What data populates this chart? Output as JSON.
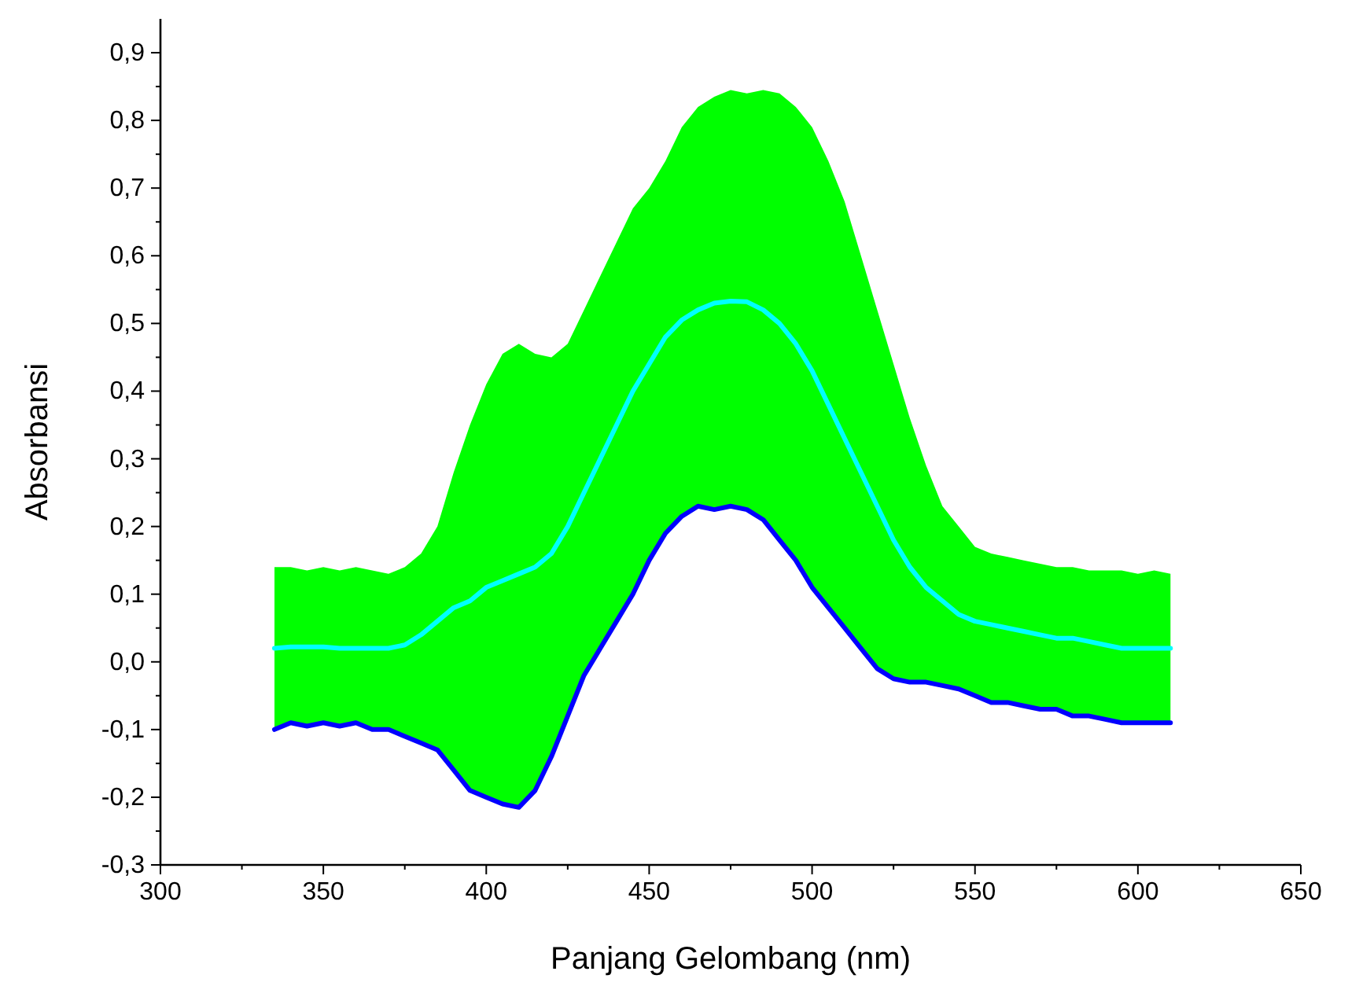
{
  "chart_data": {
    "type": "line",
    "xlabel": "Panjang Gelombang (nm)",
    "ylabel": "Absorbansi",
    "x": [
      335,
      340,
      345,
      350,
      355,
      360,
      365,
      370,
      375,
      380,
      385,
      390,
      395,
      400,
      405,
      410,
      415,
      420,
      425,
      430,
      435,
      440,
      445,
      450,
      455,
      460,
      465,
      470,
      475,
      480,
      485,
      490,
      495,
      500,
      505,
      510,
      515,
      520,
      525,
      530,
      535,
      540,
      545,
      550,
      555,
      560,
      565,
      570,
      575,
      580,
      585,
      590,
      595,
      600,
      605,
      610
    ],
    "xlim": [
      300,
      650
    ],
    "xticks": [
      300,
      {
        "value": 325,
        "label": null
      },
      350,
      {
        "value": 375,
        "label": null
      },
      400,
      {
        "value": 425,
        "label": null
      },
      450,
      {
        "value": 475,
        "label": null
      },
      500,
      {
        "value": 525,
        "label": null
      },
      550,
      {
        "value": 575,
        "label": null
      },
      600,
      {
        "value": 625,
        "label": null
      },
      650
    ],
    "ylim": [
      -0.3,
      0.95
    ],
    "yticks": [
      {
        "value": -0.3,
        "label": "-0,3"
      },
      {
        "value": -0.25,
        "label": null
      },
      {
        "value": -0.2,
        "label": "-0,2"
      },
      {
        "value": -0.15,
        "label": null
      },
      {
        "value": -0.1,
        "label": "-0,1"
      },
      {
        "value": -0.05,
        "label": null
      },
      {
        "value": 0,
        "label": "0,0"
      },
      {
        "value": 0.05,
        "label": null
      },
      {
        "value": 0.1,
        "label": "0,1"
      },
      {
        "value": 0.15,
        "label": null
      },
      {
        "value": 0.2,
        "label": "0,2"
      },
      {
        "value": 0.25,
        "label": null
      },
      {
        "value": 0.3,
        "label": "0,3"
      },
      {
        "value": 0.35,
        "label": null
      },
      {
        "value": 0.4,
        "label": "0,4"
      },
      {
        "value": 0.45,
        "label": null
      },
      {
        "value": 0.5,
        "label": "0,5"
      },
      {
        "value": 0.55,
        "label": null
      },
      {
        "value": 0.6,
        "label": "0,6"
      },
      {
        "value": 0.65,
        "label": null
      },
      {
        "value": 0.7,
        "label": "0,7"
      },
      {
        "value": 0.75,
        "label": null
      },
      {
        "value": 0.8,
        "label": "0,8"
      },
      {
        "value": 0.85,
        "label": null
      },
      {
        "value": 0.9,
        "label": "0,9"
      }
    ],
    "series": [
      {
        "color": "#00ffff",
        "values": [
          0.02,
          0.022,
          0.022,
          0.022,
          0.02,
          0.02,
          0.02,
          0.02,
          0.025,
          0.04,
          0.06,
          0.08,
          0.09,
          0.11,
          0.12,
          0.13,
          0.14,
          0.16,
          0.2,
          0.25,
          0.3,
          0.35,
          0.4,
          0.44,
          0.48,
          0.505,
          0.52,
          0.53,
          0.533,
          0.532,
          0.52,
          0.5,
          0.47,
          0.43,
          0.38,
          0.33,
          0.28,
          0.23,
          0.18,
          0.14,
          0.11,
          0.09,
          0.07,
          0.06,
          0.055,
          0.05,
          0.045,
          0.04,
          0.035,
          0.035,
          0.03,
          0.025,
          0.02,
          0.02,
          0.02,
          0.02
        ],
        "upper": [
          0.14,
          0.14,
          0.135,
          0.14,
          0.135,
          0.14,
          0.135,
          0.13,
          0.14,
          0.16,
          0.2,
          0.28,
          0.35,
          0.41,
          0.455,
          0.47,
          0.455,
          0.45,
          0.47,
          0.52,
          0.57,
          0.62,
          0.67,
          0.7,
          0.74,
          0.79,
          0.82,
          0.835,
          0.845,
          0.84,
          0.845,
          0.84,
          0.82,
          0.79,
          0.74,
          0.68,
          0.6,
          0.52,
          0.44,
          0.36,
          0.29,
          0.23,
          0.2,
          0.17,
          0.16,
          0.155,
          0.15,
          0.145,
          0.14,
          0.14,
          0.135,
          0.135,
          0.135,
          0.13,
          0.135,
          0.13
        ],
        "lower": [
          -0.1,
          -0.09,
          -0.095,
          -0.09,
          -0.095,
          -0.09,
          -0.1,
          -0.1,
          -0.11,
          -0.12,
          -0.13,
          -0.16,
          -0.19,
          -0.2,
          -0.21,
          -0.215,
          -0.19,
          -0.14,
          -0.08,
          -0.02,
          0.02,
          0.06,
          0.1,
          0.15,
          0.19,
          0.215,
          0.23,
          0.225,
          0.23,
          0.225,
          0.21,
          0.18,
          0.15,
          0.11,
          0.08,
          0.05,
          0.02,
          -0.01,
          -0.025,
          -0.03,
          -0.03,
          -0.035,
          -0.04,
          -0.05,
          -0.06,
          -0.06,
          -0.065,
          -0.07,
          -0.07,
          -0.08,
          -0.08,
          -0.085,
          -0.09,
          -0.09,
          -0.09,
          -0.09
        ]
      },
      {
        "color": "#0000ff",
        "values": [
          -0.1,
          -0.09,
          -0.095,
          -0.09,
          -0.095,
          -0.09,
          -0.1,
          -0.1,
          -0.11,
          -0.12,
          -0.13,
          -0.16,
          -0.19,
          -0.2,
          -0.21,
          -0.215,
          -0.19,
          -0.14,
          -0.08,
          -0.02,
          0.02,
          0.06,
          0.1,
          0.15,
          0.19,
          0.215,
          0.23,
          0.225,
          0.23,
          0.225,
          0.21,
          0.18,
          0.15,
          0.11,
          0.08,
          0.05,
          0.02,
          -0.01,
          -0.025,
          -0.03,
          -0.03,
          -0.035,
          -0.04,
          -0.05,
          -0.06,
          -0.06,
          -0.065,
          -0.07,
          -0.07,
          -0.08,
          -0.08,
          -0.085,
          -0.09,
          -0.09,
          -0.09,
          -0.09
        ]
      }
    ]
  }
}
